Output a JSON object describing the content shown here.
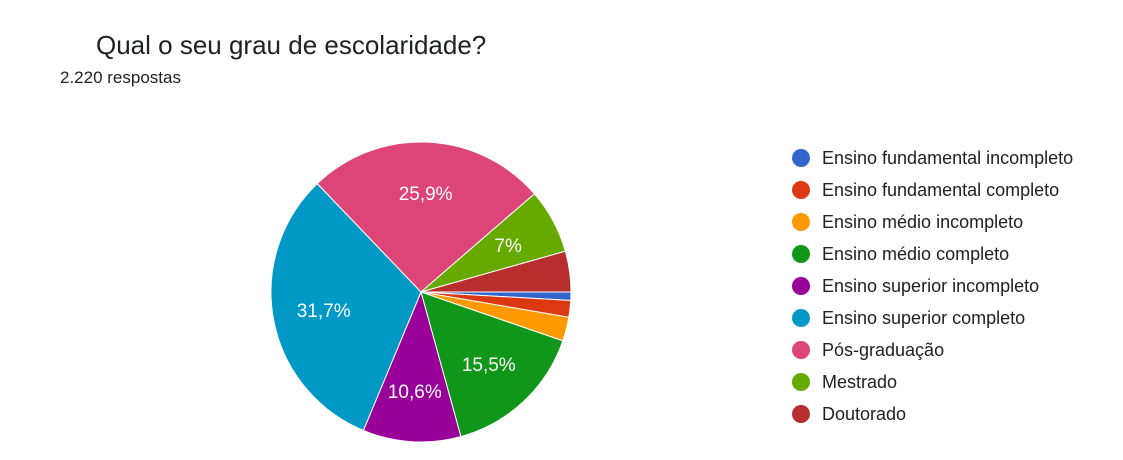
{
  "header": {
    "title": "Qual o seu grau de escolaridade?",
    "subtitle": "2.220 respostas"
  },
  "chart_data": {
    "type": "pie",
    "categories": [
      "Ensino fundamental incompleto",
      "Ensino fundamental completo",
      "Ensino médio incompleto",
      "Ensino médio completo",
      "Ensino superior incompleto",
      "Ensino superior completo",
      "Pós-graduação",
      "Mestrado",
      "Doutorado"
    ],
    "values": [
      0.9,
      1.8,
      2.6,
      15.5,
      10.6,
      31.7,
      25.9,
      7.0,
      4.4
    ],
    "data_labels": [
      "",
      "",
      "",
      "15,5%",
      "10,6%",
      "31,7%",
      "25,9%",
      "7%",
      ""
    ],
    "colors": [
      "#3366cc",
      "#dc3912",
      "#ff9900",
      "#109618",
      "#990099",
      "#0099c6",
      "#dd4477",
      "#66aa00",
      "#b82e2e"
    ],
    "legend_position": "right",
    "start_angle_deg": 90,
    "direction": "clockwise"
  }
}
